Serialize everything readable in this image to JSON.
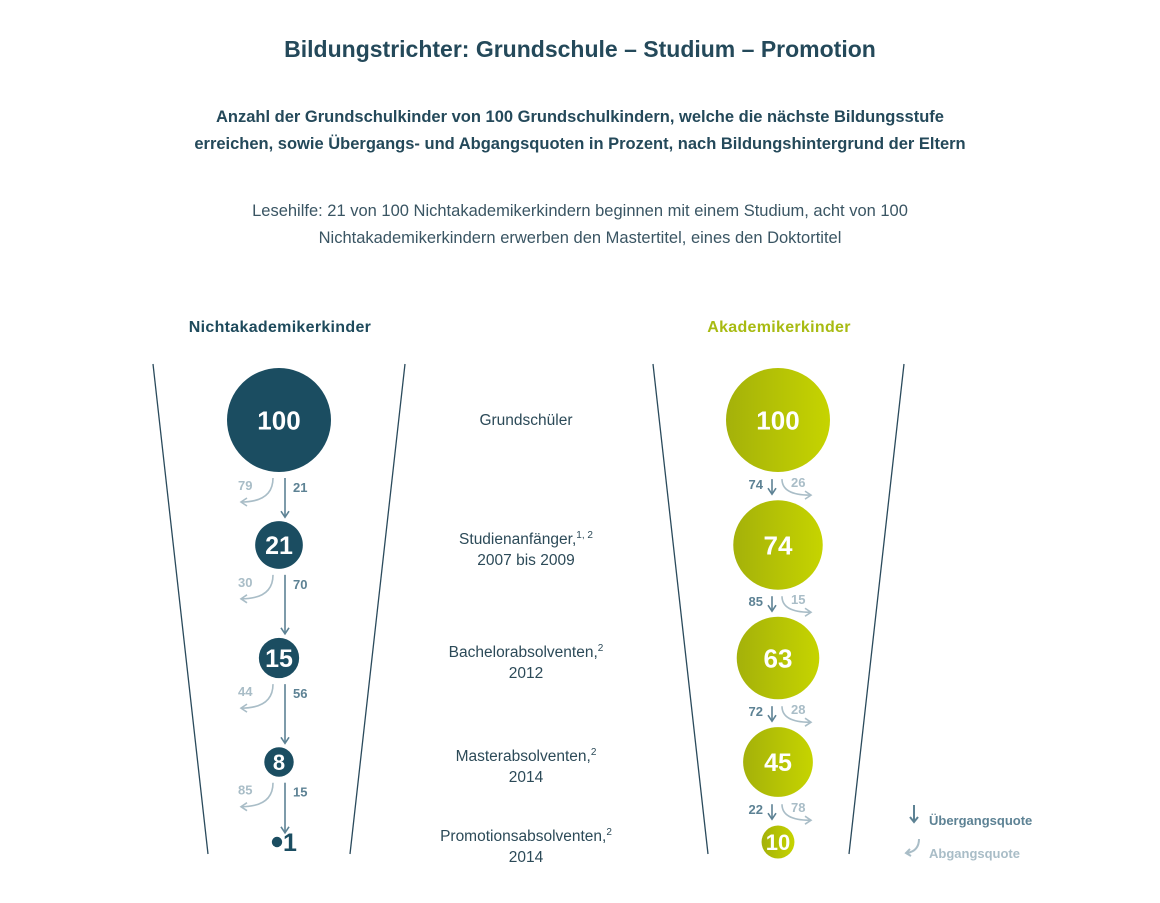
{
  "title": "Bildungstrichter: Grundschule – Studium – Promotion",
  "subtitle": {
    "line1": "Anzahl der Grundschulkinder von 100 Grundschulkindern, welche die nächste Bildungsstufe",
    "line2": "erreichen, sowie Übergangs- und Abgangsquoten in Prozent, nach Bildungshintergrund der Eltern"
  },
  "note": {
    "line1": "Lesehilfe: 21 von 100 Nichtakademikerkindern beginnen mit einem Studium, acht von 100",
    "line2": "Nichtakademikerkindern erwerben den Mastertitel, eines den Doktortitel"
  },
  "colors": {
    "left_circle": "#1b4d61",
    "right_circle_light": "#c6d400",
    "right_circle_dark": "#a4b10a",
    "transition_arrow": "#5d8294",
    "dropout_arrow": "#a9bdc7",
    "funnel_line": "#2a4a5c"
  },
  "chart_data": {
    "type": "funnel",
    "stages": [
      {
        "label": "Grundschüler",
        "sup": "",
        "sub": ""
      },
      {
        "label": "Studienanfänger,",
        "sup": "1, 2",
        "sub": "2007 bis 2009"
      },
      {
        "label": "Bachelorabsolventen,",
        "sup": "2",
        "sub": "2012"
      },
      {
        "label": "Masterabsolventen,",
        "sup": "2",
        "sub": "2014"
      },
      {
        "label": "Promotionsabsolventen,",
        "sup": "2",
        "sub": "2014"
      }
    ],
    "groups": [
      {
        "name": "Nichtakademikerkinder",
        "counts": [
          100,
          21,
          15,
          8,
          1
        ],
        "transition_rates": [
          21,
          70,
          56,
          15
        ],
        "dropout_rates": [
          79,
          30,
          44,
          85
        ]
      },
      {
        "name": "Akademikerkinder",
        "counts": [
          100,
          74,
          63,
          45,
          10
        ],
        "transition_rates": [
          74,
          85,
          72,
          22
        ],
        "dropout_rates": [
          26,
          15,
          28,
          78
        ]
      }
    ],
    "legend": {
      "transition_label": "Übergangsquote",
      "dropout_label": "Abgangsquote"
    }
  }
}
